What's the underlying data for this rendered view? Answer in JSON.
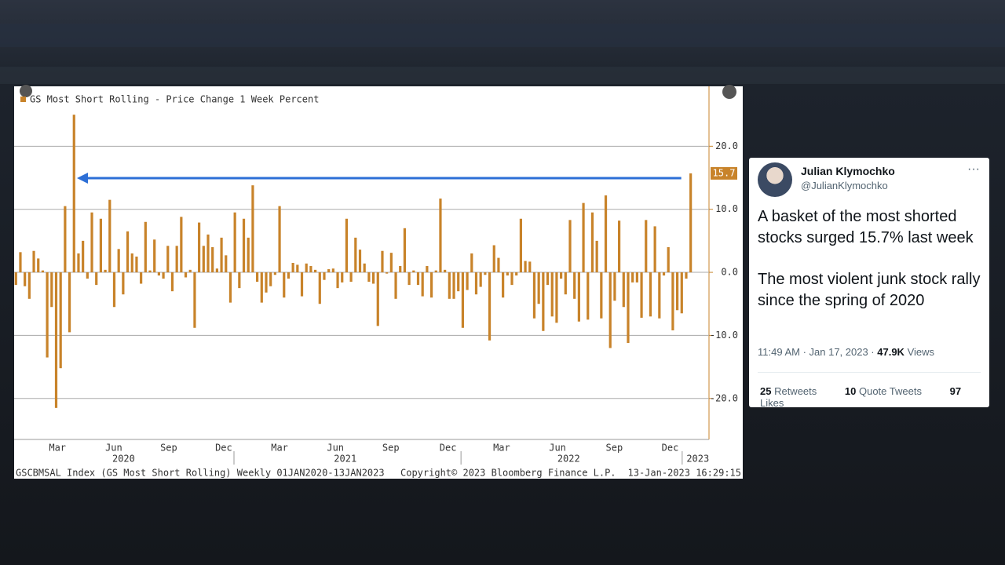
{
  "chart_data": {
    "type": "bar",
    "series": [
      {
        "name": "GS Most Short Rolling - Price Change 1 Week Percent",
        "color": "#c8832a",
        "values": [
          -2,
          3.2,
          -2.2,
          -4.2,
          3.4,
          2.2,
          0.3,
          -13.5,
          -5.5,
          -21.5,
          -15.2,
          10.5,
          -9.5,
          25,
          3,
          5,
          -1,
          9.5,
          -2,
          8.5,
          0.4,
          11.5,
          -5.5,
          3.7,
          -3.5,
          6.5,
          3,
          2.5,
          -1.8,
          8,
          0.3,
          5.2,
          -0.5,
          -1,
          4.2,
          -3,
          4.2,
          8.8,
          -0.8,
          0.4,
          -8.8,
          7.9,
          4.2,
          6,
          4,
          0.6,
          5.5,
          2.7,
          -4.8,
          9.5,
          -2.5,
          8.5,
          5.5,
          13.8,
          -1.5,
          -4.8,
          -3.2,
          -2.2,
          -0.4,
          10.5,
          -4,
          -1,
          1.5,
          1.2,
          -3.8,
          1.4,
          1,
          0.4,
          -5,
          -1.2,
          0.5,
          0.6,
          -2.5,
          -1.6,
          8.5,
          -1.5,
          5.5,
          3.6,
          1.4,
          -1.5,
          -1.8,
          -8.5,
          3.4,
          -0.2,
          3.1,
          -4.2,
          1,
          7,
          -2,
          0.3,
          -2,
          -3.8,
          1,
          -4,
          0.3,
          11.7,
          0.4,
          -4.2,
          -4.2,
          -3,
          -8.8,
          -2.8,
          3,
          -3.5,
          -2.3,
          -0.4,
          -10.8,
          4.3,
          2.3,
          -4,
          -0.5,
          -2,
          -0.5,
          8.5,
          1.8,
          1.7,
          -7.3,
          -5,
          -9.3,
          -2,
          -7,
          -8,
          -1,
          -3.5,
          8.3,
          -4.2,
          -7.8,
          11,
          -7.5,
          9.5,
          5,
          -7.3,
          12.2,
          -12,
          -4.5,
          8.2,
          -5.5,
          -11.2,
          -1.6,
          -1.6,
          -7.2,
          8.3,
          -7,
          7.3,
          -7.3,
          -0.5,
          4,
          -9.2,
          -6,
          -6.5,
          -1,
          15.7
        ]
      }
    ],
    "ylim": [
      -26.5,
      29.5
    ],
    "yticks": [
      {
        "value": 20,
        "label": "20.0"
      },
      {
        "value": 10,
        "label": "10.0"
      },
      {
        "value": 0,
        "label": "0.0"
      },
      {
        "value": -10,
        "label": "-10.0"
      },
      {
        "value": -20,
        "label": "-20.0"
      }
    ],
    "xlim": [
      -0.4,
      155.1
    ],
    "xticks": [
      {
        "value": 9.3,
        "label": "Mar"
      },
      {
        "value": 21.9,
        "label": "Jun"
      },
      {
        "value": 34.2,
        "label": "Sep"
      },
      {
        "value": 46.5,
        "label": "Dec"
      },
      {
        "value": 59.0,
        "label": "Mar"
      },
      {
        "value": 71.5,
        "label": "Jun"
      },
      {
        "value": 83.9,
        "label": "Sep"
      },
      {
        "value": 96.7,
        "label": "Dec"
      },
      {
        "value": 108.7,
        "label": "Mar"
      },
      {
        "value": 121.2,
        "label": "Jun"
      },
      {
        "value": 133.9,
        "label": "Sep"
      },
      {
        "value": 146.4,
        "label": "Dec"
      }
    ],
    "year_ticks": [
      {
        "value": 24.1,
        "label": "2020"
      },
      {
        "value": 73.7,
        "label": "2021"
      },
      {
        "value": 123.7,
        "label": "2022"
      },
      {
        "value": 152.6,
        "label": "2023"
      }
    ],
    "year_separators": [
      48.8,
      99.6,
      149.1
    ],
    "grid": true,
    "footer": {
      "index": "GSCBMSAL Index (GS Most Short Rolling) Weekly 01JAN2020-13JAN2023",
      "copyright": "Copyright© 2023 Bloomberg Finance L.P.",
      "timestamp": "13-Jan-2023 16:29:15"
    }
  },
  "tweet": {
    "name": "Julian Klymochko",
    "handle": "@JulianKlymochko",
    "text": [
      "A basket of the most shorted stocks surged 15.7% last week",
      "The most violent junk stock rally since the spring of 2020"
    ],
    "meta": "11:49 AM · Jan 17, 2023 · ",
    "views_count": "47.9K",
    "views_label": " Views",
    "stats": [
      {
        "count": "25",
        "label": " Retweets"
      },
      {
        "count": "10",
        "label": " Quote Tweets"
      },
      {
        "count": "97",
        "label": " Likes"
      }
    ]
  }
}
